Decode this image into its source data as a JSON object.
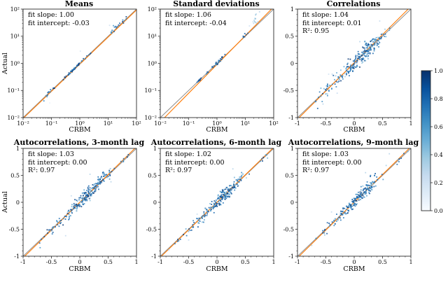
{
  "figure": {
    "background": "#ffffff",
    "xlabel": "CRBM",
    "ylabel": "Actual",
    "colors": {
      "fit_line": "#ff7f0e",
      "identity_line": "#8f8f8f",
      "spine": "#2b2b2b",
      "text": "#000000"
    }
  },
  "colorbar": {
    "colormap": "Blues",
    "tick_labels": [
      "0.0",
      "0.2",
      "0.4",
      "0.6",
      "0.8",
      "1.0"
    ],
    "tick_values": [
      0,
      0.2,
      0.4,
      0.6,
      0.8,
      1.0
    ],
    "range": [
      0,
      1
    ],
    "stops": [
      [
        0.0,
        "#f7fbff"
      ],
      [
        0.125,
        "#deebf7"
      ],
      [
        0.25,
        "#c6dbef"
      ],
      [
        0.375,
        "#9ecae1"
      ],
      [
        0.5,
        "#6baed6"
      ],
      [
        0.625,
        "#4292c6"
      ],
      [
        0.75,
        "#2171b5"
      ],
      [
        0.875,
        "#08519c"
      ],
      [
        1.0,
        "#08306b"
      ]
    ]
  },
  "chart_data": [
    {
      "type": "scatter",
      "title": "Means",
      "xlabel": "CRBM",
      "ylabel": "Actual",
      "scale": "log",
      "xlim_exp": [
        -2,
        2
      ],
      "ylim_exp": [
        -2,
        2
      ],
      "tick_labels": [
        "10⁻²",
        "10⁻¹",
        "10⁰",
        "10¹",
        "10²"
      ],
      "tick_values": [
        -2,
        -1,
        0,
        1,
        2
      ],
      "grid": false,
      "fit": {
        "slope": 1.0,
        "intercept": -0.03
      },
      "annotation": [
        "fit slope: 1.00",
        "fit intercept: -0.03"
      ],
      "scatter": {
        "seed": 101,
        "clusters": [
          {
            "cx": -1.15,
            "sx": 0.06,
            "dy": 0.0,
            "sy": 0.05,
            "n": 9,
            "cmin": 0.55,
            "cmax": 1.0
          },
          {
            "cx": -0.9,
            "sx": 0.04,
            "dy": 0.0,
            "sy": 0.02,
            "n": 4,
            "cmin": 0.7,
            "cmax": 1.0
          },
          {
            "cx": -0.55,
            "sx": 0.04,
            "dy": 0.0,
            "sy": 0.02,
            "n": 4,
            "cmin": 0.6,
            "cmax": 1.0
          },
          {
            "cx": -0.12,
            "sx": 0.14,
            "dy": 0.0,
            "sy": 0.025,
            "n": 42,
            "cmin": 0.45,
            "cmax": 1.0
          },
          {
            "cx": 0.28,
            "sx": 0.08,
            "dy": 0.0,
            "sy": 0.02,
            "n": 5,
            "cmin": 0.6,
            "cmax": 1.0
          },
          {
            "cx": 1.15,
            "sx": 0.06,
            "dy": 0.05,
            "sy": 0.06,
            "n": 9,
            "cmin": 0.3,
            "cmax": 0.9
          },
          {
            "cx": 1.55,
            "sx": 0.09,
            "dy": 0.02,
            "sy": 0.04,
            "n": 10,
            "cmin": 0.5,
            "cmax": 1.0
          }
        ],
        "outliers": [
          {
            "x": -1.06,
            "y": -1.46,
            "c": 0.07
          },
          {
            "x": 0.02,
            "y": 0.45,
            "c": 0.15
          },
          {
            "x": 1.05,
            "y": 1.4,
            "c": 0.2
          }
        ]
      }
    },
    {
      "type": "scatter",
      "title": "Standard deviations",
      "xlabel": "CRBM",
      "ylabel": "Actual",
      "scale": "log",
      "xlim_exp": [
        -2,
        2
      ],
      "ylim_exp": [
        -2,
        2
      ],
      "tick_labels": [
        "10⁻²",
        "10⁻¹",
        "10⁰",
        "10¹",
        "10²"
      ],
      "tick_values": [
        -2,
        -1,
        0,
        1,
        2
      ],
      "grid": false,
      "fit": {
        "slope": 1.06,
        "intercept": -0.04
      },
      "annotation": [
        "fit slope: 1.06",
        "fit intercept: -0.04"
      ],
      "scatter": {
        "seed": 102,
        "clusters": [
          {
            "cx": -0.62,
            "sx": 0.04,
            "dy": 0.0,
            "sy": 0.02,
            "n": 10,
            "cmin": 0.6,
            "cmax": 1.0
          },
          {
            "cx": -0.35,
            "sx": 0.03,
            "dy": 0.0,
            "sy": 0.015,
            "n": 5,
            "cmin": 0.6,
            "cmax": 1.0
          },
          {
            "cx": 0.02,
            "sx": 0.12,
            "dy": 0.01,
            "sy": 0.03,
            "n": 26,
            "cmin": 0.45,
            "cmax": 1.0
          },
          {
            "cx": 1.02,
            "sx": 0.05,
            "dy": 0.03,
            "sy": 0.03,
            "n": 7,
            "cmin": 0.6,
            "cmax": 1.0
          },
          {
            "cx": 1.38,
            "sx": 0.12,
            "dy": 0.22,
            "sy": 0.12,
            "n": 12,
            "cmin": 0.15,
            "cmax": 0.55
          }
        ],
        "outliers": [
          {
            "x": 1.5,
            "y": 1.9,
            "c": 0.3
          }
        ]
      }
    },
    {
      "type": "scatter",
      "title": "Correlations",
      "xlabel": "CRBM",
      "ylabel": "Actual",
      "scale": "linear",
      "xlim": [
        -1,
        1
      ],
      "ylim": [
        -1,
        1
      ],
      "tick_labels": [
        "-1",
        "-0.5",
        "0",
        "0.5",
        "1"
      ],
      "tick_values": [
        -1,
        -0.5,
        0,
        0.5,
        1
      ],
      "grid": false,
      "fit": {
        "slope": 1.04,
        "intercept": 0.01
      },
      "r2": 0.95,
      "annotation": [
        "fit slope: 1.04",
        "fit intercept: 0.01",
        "R²: 0.95"
      ],
      "scatter": {
        "seed": 103,
        "clusters": [
          {
            "cx": 0.07,
            "sx": 0.17,
            "dy": 0.0,
            "sy": 0.075,
            "n": 165,
            "cmin": 0.3,
            "cmax": 1.0
          },
          {
            "cx": 0.3,
            "sx": 0.12,
            "dy": 0.02,
            "sy": 0.06,
            "n": 50,
            "cmin": 0.3,
            "cmax": 0.9
          },
          {
            "cx": -0.33,
            "sx": 0.15,
            "dy": 0.0,
            "sy": 0.06,
            "n": 35,
            "cmin": 0.25,
            "cmax": 0.85
          },
          {
            "cx": -0.65,
            "sx": 0.08,
            "dy": 0.0,
            "sy": 0.03,
            "n": 6,
            "cmin": 0.5,
            "cmax": 1.0
          },
          {
            "cx": 0.5,
            "sx": 0.05,
            "dy": 0.0,
            "sy": 0.05,
            "n": 8,
            "cmin": 0.3,
            "cmax": 0.8
          }
        ],
        "outliers": [
          {
            "x": 0.45,
            "y": 0.78,
            "c": 0.25
          },
          {
            "x": -0.45,
            "y": -0.2,
            "c": 0.2
          },
          {
            "x": -0.3,
            "y": -0.55,
            "c": 0.25
          },
          {
            "x": 0.1,
            "y": 0.4,
            "c": 0.3
          },
          {
            "x": -0.55,
            "y": -0.75,
            "c": 0.3
          }
        ]
      }
    },
    {
      "type": "scatter",
      "title": "Autocorrelations, 3-month lag",
      "xlabel": "CRBM",
      "ylabel": "Actual",
      "scale": "linear",
      "xlim": [
        -1,
        1
      ],
      "ylim": [
        -1,
        1
      ],
      "tick_labels": [
        "-1",
        "-0.5",
        "0",
        "0.5",
        "1"
      ],
      "tick_values": [
        -1,
        -0.5,
        0,
        0.5,
        1
      ],
      "grid": false,
      "fit": {
        "slope": 1.03,
        "intercept": 0.0
      },
      "r2": 0.97,
      "annotation": [
        "fit slope: 1.03",
        "fit intercept: 0.00",
        "R²: 0.97"
      ],
      "scatter": {
        "seed": 104,
        "clusters": [
          {
            "cx": 0.12,
            "sx": 0.18,
            "dy": 0.0,
            "sy": 0.055,
            "n": 155,
            "cmin": 0.35,
            "cmax": 1.0
          },
          {
            "cx": 0.35,
            "sx": 0.1,
            "dy": 0.03,
            "sy": 0.06,
            "n": 45,
            "cmin": 0.3,
            "cmax": 0.9
          },
          {
            "cx": -0.3,
            "sx": 0.14,
            "dy": -0.02,
            "sy": 0.05,
            "n": 30,
            "cmin": 0.3,
            "cmax": 0.9
          },
          {
            "cx": 0.8,
            "sx": 0.07,
            "dy": 0.0,
            "sy": 0.03,
            "n": 8,
            "cmin": 0.4,
            "cmax": 1.0
          },
          {
            "cx": -0.6,
            "sx": 0.08,
            "dy": 0.0,
            "sy": 0.03,
            "n": 7,
            "cmin": 0.5,
            "cmax": 1.0
          }
        ],
        "outliers": [
          {
            "x": -0.25,
            "y": -0.62,
            "c": 0.25
          },
          {
            "x": 0.18,
            "y": 0.52,
            "c": 0.3
          },
          {
            "x": -0.15,
            "y": 0.12,
            "c": 0.25
          },
          {
            "x": 0.55,
            "y": 0.38,
            "c": 0.3
          }
        ]
      }
    },
    {
      "type": "scatter",
      "title": "Autocorrelations, 6-month lag",
      "xlabel": "CRBM",
      "ylabel": "Actual",
      "scale": "linear",
      "xlim": [
        -1,
        1
      ],
      "ylim": [
        -1,
        1
      ],
      "tick_labels": [
        "-1",
        "-0.5",
        "0",
        "0.5",
        "1"
      ],
      "tick_values": [
        -1,
        -0.5,
        0,
        0.5,
        1
      ],
      "grid": false,
      "fit": {
        "slope": 1.02,
        "intercept": 0.0
      },
      "r2": 0.97,
      "annotation": [
        "fit slope: 1.02",
        "fit intercept: 0.00",
        "R²: 0.97"
      ],
      "scatter": {
        "seed": 105,
        "clusters": [
          {
            "cx": 0.08,
            "sx": 0.17,
            "dy": 0.0,
            "sy": 0.055,
            "n": 155,
            "cmin": 0.35,
            "cmax": 1.0
          },
          {
            "cx": 0.32,
            "sx": 0.1,
            "dy": 0.02,
            "sy": 0.055,
            "n": 42,
            "cmin": 0.3,
            "cmax": 0.9
          },
          {
            "cx": -0.28,
            "sx": 0.13,
            "dy": -0.02,
            "sy": 0.05,
            "n": 30,
            "cmin": 0.3,
            "cmax": 0.9
          },
          {
            "cx": 0.82,
            "sx": 0.07,
            "dy": 0.0,
            "sy": 0.03,
            "n": 7,
            "cmin": 0.4,
            "cmax": 1.0
          },
          {
            "cx": -0.62,
            "sx": 0.08,
            "dy": 0.0,
            "sy": 0.03,
            "n": 7,
            "cmin": 0.5,
            "cmax": 1.0
          }
        ],
        "outliers": [
          {
            "x": -0.35,
            "y": -0.22,
            "c": 0.25
          },
          {
            "x": 0.28,
            "y": 0.62,
            "c": 0.3
          },
          {
            "x": -0.5,
            "y": -0.7,
            "c": 0.25
          },
          {
            "x": -0.85,
            "y": -0.88,
            "c": 0.35
          }
        ]
      }
    },
    {
      "type": "scatter",
      "title": "Autocorrelations, 9-month lag",
      "xlabel": "CRBM",
      "ylabel": "Actual",
      "scale": "linear",
      "xlim": [
        -1,
        1
      ],
      "ylim": [
        -1,
        1
      ],
      "tick_labels": [
        "-1",
        "-0.5",
        "0",
        "0.5",
        "1"
      ],
      "tick_values": [
        -1,
        -0.5,
        0,
        0.5,
        1
      ],
      "grid": false,
      "fit": {
        "slope": 1.03,
        "intercept": 0.0
      },
      "r2": 0.97,
      "annotation": [
        "fit slope: 1.03",
        "fit intercept: 0.00",
        "R²: 0.97"
      ],
      "scatter": {
        "seed": 106,
        "clusters": [
          {
            "cx": 0.06,
            "sx": 0.16,
            "dy": 0.0,
            "sy": 0.055,
            "n": 150,
            "cmin": 0.35,
            "cmax": 1.0
          },
          {
            "cx": 0.3,
            "sx": 0.1,
            "dy": 0.02,
            "sy": 0.055,
            "n": 40,
            "cmin": 0.3,
            "cmax": 0.9
          },
          {
            "cx": -0.28,
            "sx": 0.13,
            "dy": -0.02,
            "sy": 0.05,
            "n": 28,
            "cmin": 0.3,
            "cmax": 0.9
          },
          {
            "cx": 0.75,
            "sx": 0.08,
            "dy": 0.0,
            "sy": 0.04,
            "n": 7,
            "cmin": 0.4,
            "cmax": 1.0
          },
          {
            "cx": -0.6,
            "sx": 0.08,
            "dy": 0.0,
            "sy": 0.03,
            "n": 6,
            "cmin": 0.5,
            "cmax": 1.0
          }
        ],
        "outliers": [
          {
            "x": 0.62,
            "y": 0.9,
            "c": 0.3
          },
          {
            "x": -0.4,
            "y": -0.18,
            "c": 0.25
          },
          {
            "x": 0.2,
            "y": 0.55,
            "c": 0.3
          },
          {
            "x": -0.75,
            "y": -0.8,
            "c": 0.35
          }
        ]
      }
    }
  ]
}
